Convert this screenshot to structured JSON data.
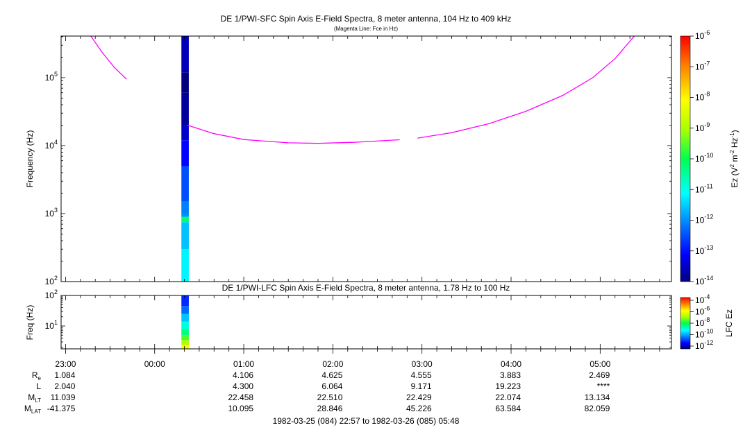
{
  "chart_data": [
    {
      "type": "heatmap",
      "title": "DE 1/PWI-SFC  Spin Axis E-Field Spectra, 8 meter antenna, 104 Hz to 409 kHz",
      "subtitle": "(Magenta Line: Fce in Hz)",
      "ylabel": "Frequency (Hz)",
      "yscale": "log",
      "ylim": [
        100,
        409000
      ],
      "yticks": [
        {
          "base": "10",
          "exp": "2"
        },
        {
          "base": "10",
          "exp": "3"
        },
        {
          "base": "10",
          "exp": "4"
        },
        {
          "base": "10",
          "exp": "5"
        }
      ],
      "xlim": [
        "1982-03-25 22:57",
        "1982-03-26 05:48"
      ],
      "colorbar": {
        "label": {
          "base": "Ez (V",
          "e1": "2",
          "m": " m",
          "e2": "-2",
          "hz": " Hz",
          "e3": "-1",
          "close": ")"
        },
        "ticks": [
          {
            "base": "10",
            "exp": "-6"
          },
          {
            "base": "10",
            "exp": "-7"
          },
          {
            "base": "10",
            "exp": "-8"
          },
          {
            "base": "10",
            "exp": "-9"
          },
          {
            "base": "10",
            "exp": "-10"
          },
          {
            "base": "10",
            "exp": "-11"
          },
          {
            "base": "10",
            "exp": "-12"
          },
          {
            "base": "10",
            "exp": "-13"
          },
          {
            "base": "10",
            "exp": "-14"
          }
        ],
        "range": [
          1e-14,
          1e-06
        ]
      },
      "data_strip": {
        "time_start": "1982-03-26 00:18",
        "time_end": "1982-03-26 00:23",
        "segments": [
          {
            "f0": 100,
            "f1": 300,
            "level": -11.2
          },
          {
            "f0": 300,
            "f1": 750,
            "level": -11.6
          },
          {
            "f0": 750,
            "f1": 900,
            "level": -10.2
          },
          {
            "f0": 900,
            "f1": 1000,
            "level": -12.0
          },
          {
            "f0": 1000,
            "f1": 1500,
            "level": -12.1
          },
          {
            "f0": 1500,
            "f1": 5000,
            "level": -12.5
          },
          {
            "f0": 5000,
            "f1": 12000,
            "level": -13.1
          },
          {
            "f0": 12000,
            "f1": 20000,
            "level": -13.5
          },
          {
            "f0": 20000,
            "f1": 60000,
            "level": -13.8
          },
          {
            "f0": 60000,
            "f1": 120000,
            "level": -14.0
          },
          {
            "f0": 120000,
            "f1": 409000,
            "level": -13.6
          }
        ]
      },
      "fce_line": [
        {
          "segment": [
            {
              "t": "1982-03-25 23:17",
              "f": 409000
            },
            {
              "t": "1982-03-25 23:25",
              "f": 230000
            },
            {
              "t": "1982-03-25 23:33",
              "f": 140000
            },
            {
              "t": "1982-03-25 23:41",
              "f": 95000
            }
          ]
        },
        {
          "segment": [
            {
              "t": "1982-03-26 00:22",
              "f": 20000
            },
            {
              "t": "1982-03-26 00:40",
              "f": 15000
            },
            {
              "t": "1982-03-26 01:00",
              "f": 12300
            },
            {
              "t": "1982-03-26 01:30",
              "f": 11000
            },
            {
              "t": "1982-03-26 01:50",
              "f": 10800
            },
            {
              "t": "1982-03-26 02:15",
              "f": 11200
            },
            {
              "t": "1982-03-26 02:45",
              "f": 12200
            }
          ]
        },
        {
          "segment": [
            {
              "t": "1982-03-26 02:57",
              "f": 12900
            },
            {
              "t": "1982-03-26 03:20",
              "f": 15500
            },
            {
              "t": "1982-03-26 03:45",
              "f": 21000
            },
            {
              "t": "1982-03-26 04:10",
              "f": 32000
            },
            {
              "t": "1982-03-26 04:35",
              "f": 55000
            },
            {
              "t": "1982-03-26 04:55",
              "f": 100000
            },
            {
              "t": "1982-03-26 05:10",
              "f": 190000
            },
            {
              "t": "1982-03-26 05:23",
              "f": 409000
            }
          ]
        }
      ]
    },
    {
      "type": "heatmap",
      "title": "DE 1/PWI-LFC  Spin Axis E-Field Spectra, 8 meter antenna, 1.78 Hz to 100 Hz",
      "ylabel": "Freq (Hz)",
      "yscale": "log",
      "ylim": [
        1.78,
        100
      ],
      "yticks": [
        {
          "base": "10",
          "exp": "1"
        },
        {
          "base": "10",
          "exp": "2"
        }
      ],
      "colorbar": {
        "label": "LFC Ez",
        "ticks": [
          {
            "base": "10",
            "exp": "-4"
          },
          {
            "base": "10",
            "exp": "-6"
          },
          {
            "base": "10",
            "exp": "-8"
          },
          {
            "base": "10",
            "exp": "-10"
          },
          {
            "base": "10",
            "exp": "-12"
          }
        ],
        "range": [
          1e-12,
          0.0001
        ]
      },
      "data_strip": {
        "time_start": "1982-03-26 00:18",
        "time_end": "1982-03-26 00:23",
        "segments": [
          {
            "f0": 1.78,
            "f1": 2.4,
            "level": -6.2
          },
          {
            "f0": 2.4,
            "f1": 3.5,
            "level": -7.0
          },
          {
            "f0": 3.5,
            "f1": 5.0,
            "level": -7.6
          },
          {
            "f0": 5.0,
            "f1": 8.0,
            "level": -8.3
          },
          {
            "f0": 8.0,
            "f1": 14.0,
            "level": -8.9
          },
          {
            "f0": 14.0,
            "f1": 25.0,
            "level": -9.6
          },
          {
            "f0": 25.0,
            "f1": 45.0,
            "level": -10.3
          },
          {
            "f0": 45.0,
            "f1": 100,
            "level": -10.8
          }
        ]
      }
    }
  ],
  "x_axis": {
    "ticks": [
      {
        "time": "1982-03-25 23:00",
        "label": "23:00"
      },
      {
        "time": "1982-03-26 00:00",
        "label": "00:00"
      },
      {
        "time": "1982-03-26 01:00",
        "label": "01:00"
      },
      {
        "time": "1982-03-26 02:00",
        "label": "02:00"
      },
      {
        "time": "1982-03-26 03:00",
        "label": "03:00"
      },
      {
        "time": "1982-03-26 04:00",
        "label": "04:00"
      },
      {
        "time": "1982-03-26 05:00",
        "label": "05:00"
      }
    ],
    "minor_minutes": 10
  },
  "ephemeris": {
    "row_labels": [
      {
        "base": "R",
        "sub": "e"
      },
      {
        "base": "L",
        "sub": ""
      },
      {
        "base": "M",
        "sub": "LT"
      },
      {
        "base": "M",
        "sub": "LAT"
      }
    ],
    "columns": [
      {
        "time": "1982-03-25 23:00",
        "values": [
          "1.084",
          "2.040",
          "11.039",
          "-41.375"
        ]
      },
      {
        "time": "1982-03-26 01:00",
        "values": [
          "4.106",
          "4.300",
          "22.458",
          "10.095"
        ]
      },
      {
        "time": "1982-03-26 02:00",
        "values": [
          "4.625",
          "6.064",
          "22.510",
          "28.846"
        ]
      },
      {
        "time": "1982-03-26 03:00",
        "values": [
          "4.555",
          "9.171",
          "22.429",
          "45.226"
        ]
      },
      {
        "time": "1982-03-26 04:00",
        "values": [
          "3.883",
          "19.223",
          "22.074",
          "63.584"
        ]
      },
      {
        "time": "1982-03-26 05:00",
        "values": [
          "2.469",
          "****",
          "13.134",
          "82.059"
        ]
      }
    ]
  },
  "time_range_label": "1982-03-25 (084) 22:57 to 1982-03-26 (085) 05:48",
  "colors": {
    "fce_line": "#ff00ff",
    "frame": "#000000"
  }
}
